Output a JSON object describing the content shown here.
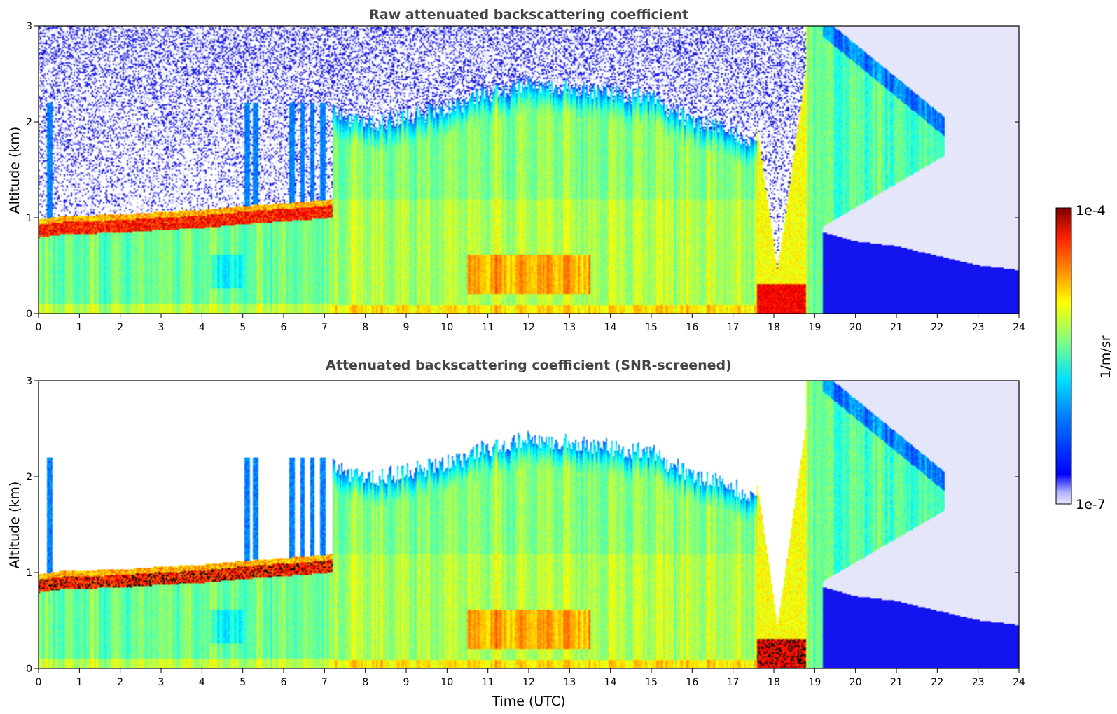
{
  "chart_data": [
    {
      "type": "heatmap",
      "title": "Raw attenuated backscattering coefficient",
      "xlabel": "",
      "ylabel": "Altitude (km)",
      "xlim": [
        0,
        24
      ],
      "ylim": [
        0,
        3
      ],
      "xticks": [
        "0",
        "1",
        "2",
        "3",
        "4",
        "5",
        "6",
        "7",
        "8",
        "9",
        "10",
        "11",
        "12",
        "13",
        "14",
        "15",
        "16",
        "17",
        "18",
        "19",
        "20",
        "21",
        "22",
        "23",
        "24"
      ],
      "yticks": [
        "0",
        "1",
        "2",
        "3"
      ],
      "screened": false
    },
    {
      "type": "heatmap",
      "title": "Attenuated backscattering coefficient (SNR-screened)",
      "xlabel": "Time (UTC)",
      "ylabel": "Altitude (km)",
      "xlim": [
        0,
        24
      ],
      "ylim": [
        0,
        3
      ],
      "xticks": [
        "0",
        "1",
        "2",
        "3",
        "4",
        "5",
        "6",
        "7",
        "8",
        "9",
        "10",
        "11",
        "12",
        "13",
        "14",
        "15",
        "16",
        "17",
        "18",
        "19",
        "20",
        "21",
        "22",
        "23",
        "24"
      ],
      "yticks": [
        "0",
        "1",
        "2",
        "3"
      ],
      "screened": true
    }
  ],
  "colorbar": {
    "label": "1/m/sr",
    "max_label": "1e-4",
    "min_label": "1e-7",
    "range_log10": [
      -7,
      -4
    ],
    "colormap": "jet"
  },
  "features": {
    "boundary_layer_top_km": {
      "t": [
        0,
        0.5,
        1,
        2,
        3,
        4,
        5,
        6,
        7,
        7.2
      ],
      "h": [
        0.92,
        0.95,
        0.96,
        0.97,
        1.0,
        1.02,
        1.06,
        1.09,
        1.12,
        1.14
      ]
    },
    "mixed_layer_top_km": {
      "t": [
        7.2,
        8,
        9,
        10,
        11,
        12,
        13,
        14,
        15,
        16,
        17,
        17.5
      ],
      "h": [
        2.1,
        2.0,
        2.05,
        2.15,
        2.3,
        2.4,
        2.35,
        2.3,
        2.25,
        2.0,
        1.9,
        1.8
      ]
    },
    "night_layer_top_km": {
      "t": [
        19.2,
        20,
        21,
        22,
        23,
        24
      ],
      "h": [
        0.85,
        0.75,
        0.7,
        0.6,
        0.5,
        0.45
      ]
    }
  }
}
